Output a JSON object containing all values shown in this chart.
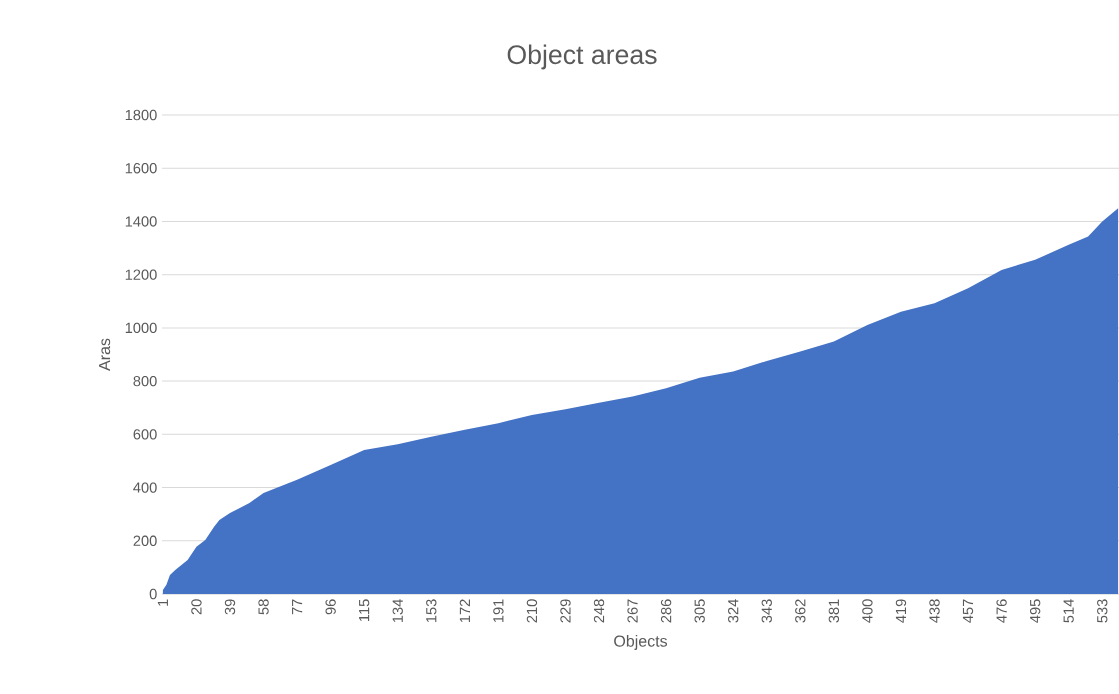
{
  "chart_data": {
    "type": "area",
    "title": "Object areas",
    "xlabel": "Objects",
    "ylabel": "Aras",
    "x": [
      1,
      3,
      5,
      8,
      15,
      20,
      25,
      30,
      33,
      39,
      50,
      58,
      77,
      96,
      115,
      134,
      153,
      172,
      191,
      210,
      229,
      248,
      267,
      286,
      305,
      324,
      343,
      362,
      381,
      400,
      419,
      438,
      457,
      476,
      495,
      514,
      525,
      533,
      542
    ],
    "series": [
      {
        "color": "#4472c4",
        "values": [
          15,
          35,
          71,
          90,
          128,
          178,
          203,
          253,
          278,
          304,
          342,
          380,
          429,
          485,
          541,
          563,
          591,
          617,
          642,
          673,
          694,
          719,
          742,
          773,
          813,
          836,
          876,
          911,
          949,
          1011,
          1061,
          1093,
          1149,
          1218,
          1256,
          1312,
          1343,
          1400,
          1450
        ]
      }
    ],
    "xlim": [
      0.5,
      542.5
    ],
    "xticks": [
      1,
      20,
      39,
      58,
      77,
      96,
      115,
      134,
      153,
      172,
      191,
      210,
      229,
      248,
      267,
      286,
      305,
      324,
      343,
      362,
      381,
      400,
      419,
      438,
      457,
      476,
      495,
      514,
      533
    ],
    "ylim": [
      0,
      1800
    ],
    "yticks": [
      0,
      200,
      400,
      600,
      800,
      1000,
      1200,
      1400,
      1600,
      1800
    ],
    "grid": "y"
  }
}
